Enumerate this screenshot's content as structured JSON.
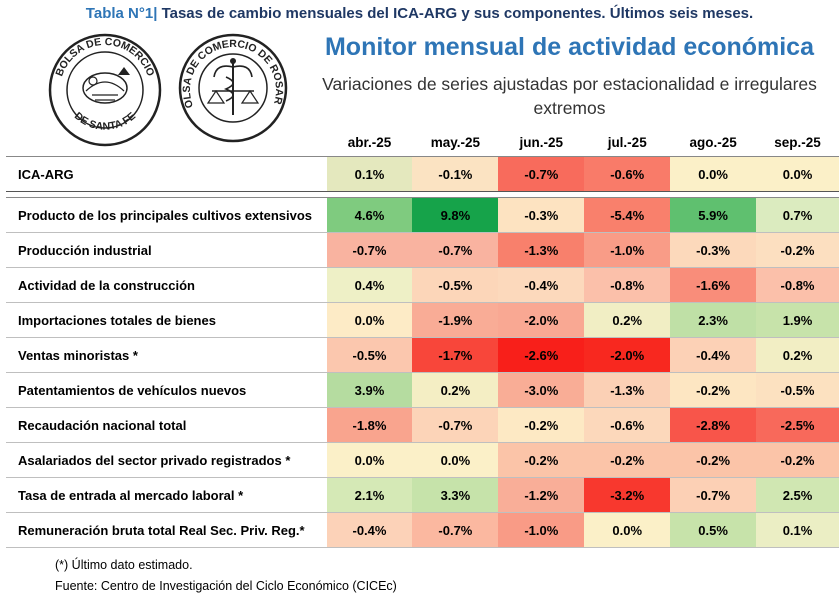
{
  "title_prefix": "Tabla N°1|",
  "title_text": "Tasas de cambio mensuales del ICA-ARG y sus componentes. Últimos seis meses.",
  "logos": {
    "left_text_top": "BOLSA DE COMERCIO",
    "left_text_bottom": "DE SANTA FE",
    "right_text": "BOLSA DE COMERCIO DE ROSARIO"
  },
  "header": {
    "title": "Monitor mensual de actividad económica",
    "subtitle_line1": "Variaciones de series ajustadas por estacionalidad e irregulares",
    "subtitle_line2": "extremos"
  },
  "months": [
    "abr.-25",
    "may.-25",
    "jun.-25",
    "jul.-25",
    "ago.-25",
    "sep.-25"
  ],
  "rows": [
    {
      "label": "ICA-ARG",
      "values": [
        "0.1%",
        "-0.1%",
        "-0.7%",
        "-0.6%",
        "0.0%",
        "0.0%"
      ],
      "colors": [
        "#e4e8be",
        "#fbe3c2",
        "#f86b5c",
        "#f97b69",
        "#fbf0c8",
        "#fbf0c8"
      ]
    },
    {
      "label": "Producto de los principales cultivos extensivos",
      "values": [
        "4.6%",
        "9.8%",
        "-0.3%",
        "-5.4%",
        "5.9%",
        "0.7%"
      ],
      "colors": [
        "#7fcb7f",
        "#16a34a",
        "#fde3c1",
        "#f9806c",
        "#5fc06f",
        "#dbebbf"
      ]
    },
    {
      "label": "Producción industrial",
      "values": [
        "-0.7%",
        "-0.7%",
        "-1.3%",
        "-1.0%",
        "-0.3%",
        "-0.2%"
      ],
      "colors": [
        "#f9b3a0",
        "#f9b3a0",
        "#f8806c",
        "#f99c87",
        "#fcd9bb",
        "#fcdfc0"
      ]
    },
    {
      "label": "Actividad de la construcción",
      "values": [
        "0.4%",
        "-0.5%",
        "-0.4%",
        "-0.8%",
        "-1.6%",
        "-0.8%"
      ],
      "colors": [
        "#eef0c6",
        "#fcd6b9",
        "#fcd9bc",
        "#fbc0aa",
        "#f98d7a",
        "#fbc0aa"
      ]
    },
    {
      "label": "Importaciones totales de bienes",
      "values": [
        "0.0%",
        "-1.9%",
        "-2.0%",
        "0.2%",
        "2.3%",
        "1.9%"
      ],
      "colors": [
        "#fdebc6",
        "#f9ac96",
        "#f9a893",
        "#f1eec4",
        "#bfe0a6",
        "#c7e3aa"
      ]
    },
    {
      "label": "Ventas minoristas *",
      "values": [
        "-0.5%",
        "-1.7%",
        "-2.6%",
        "-2.0%",
        "-0.4%",
        "0.2%"
      ],
      "colors": [
        "#fbc7ae",
        "#f8463a",
        "#f81f1a",
        "#f8281f",
        "#fcd1b6",
        "#f2eec4"
      ]
    },
    {
      "label": "Patentamientos de vehículos nuevos",
      "values": [
        "3.9%",
        "0.2%",
        "-3.0%",
        "-1.3%",
        "-0.2%",
        "-0.5%"
      ],
      "colors": [
        "#b5dca0",
        "#f4eec4",
        "#f9ad96",
        "#fbd0b5",
        "#fde6c2",
        "#fce1c0"
      ]
    },
    {
      "label": "Recaudación nacional total",
      "values": [
        "-1.8%",
        "-0.7%",
        "-0.2%",
        "-0.6%",
        "-2.8%",
        "-2.5%"
      ],
      "colors": [
        "#f9a48e",
        "#fcd4b8",
        "#fde9c4",
        "#fcd8bb",
        "#f8554a",
        "#f8695b"
      ]
    },
    {
      "label": "Asalariados del sector privado registrados *",
      "values": [
        "0.0%",
        "0.0%",
        "-0.2%",
        "-0.2%",
        "-0.2%",
        "-0.2%"
      ],
      "colors": [
        "#fbf0c8",
        "#fbf0c8",
        "#fbc4a8",
        "#fbc4a8",
        "#fbc4a8",
        "#fbc4a8"
      ]
    },
    {
      "label": "Tasa de entrada al mercado laboral *",
      "values": [
        "2.1%",
        "3.3%",
        "-1.2%",
        "-3.2%",
        "-0.7%",
        "2.5%"
      ],
      "colors": [
        "#d5e9b6",
        "#c6e3aa",
        "#f9ae98",
        "#f8382e",
        "#fcd0b5",
        "#d0e7b2"
      ]
    },
    {
      "label": "Remuneración bruta total Real Sec. Priv. Reg.*",
      "values": [
        "-0.4%",
        "-0.7%",
        "-1.0%",
        "0.0%",
        "0.5%",
        "0.1%"
      ],
      "colors": [
        "#fcd2b8",
        "#fbb8a0",
        "#f99b86",
        "#fbf0c8",
        "#c7e3aa",
        "#ebeec4"
      ]
    }
  ],
  "footnote1": "(*) Último dato estimado.",
  "footnote2": "Fuente: Centro de Investigación del Ciclo Económico (CICEc)"
}
